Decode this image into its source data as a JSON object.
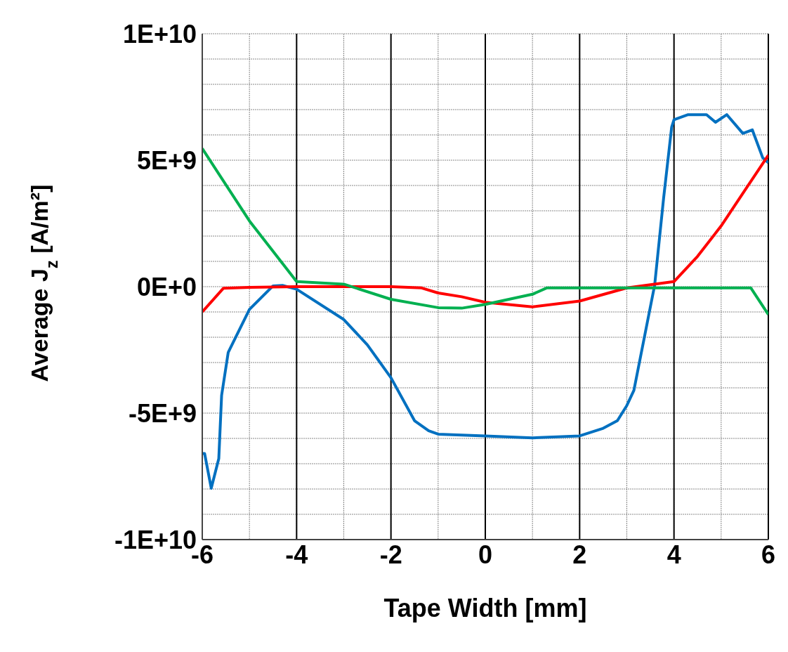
{
  "chart_data": {
    "type": "line",
    "xlabel": "Tape Width [mm]",
    "ylabel": "Average J$_{z}$ [A/m²]",
    "xlim": [
      -6,
      6
    ],
    "ylim": [
      -10000000000,
      10000000000
    ],
    "xticks": [
      -6,
      {
        "value": -5,
        "label": null
      },
      -4,
      {
        "value": -3,
        "label": null
      },
      -2,
      {
        "value": -1,
        "label": null
      },
      0,
      {
        "value": 1,
        "label": null
      },
      2,
      {
        "value": 3,
        "label": null
      },
      4,
      {
        "value": 5,
        "label": null
      },
      6
    ],
    "yticks": [
      {
        "value": -10000000000,
        "label": "-1E+10"
      },
      {
        "value": -9000000000,
        "label": null
      },
      {
        "value": -8000000000,
        "label": null
      },
      {
        "value": -7000000000,
        "label": null
      },
      {
        "value": -6000000000,
        "label": null
      },
      {
        "value": -5000000000,
        "label": "-5E+9"
      },
      {
        "value": -4000000000,
        "label": null
      },
      {
        "value": -3000000000,
        "label": null
      },
      {
        "value": -2000000000,
        "label": null
      },
      {
        "value": -1000000000,
        "label": null
      },
      {
        "value": 0,
        "label": "0E+0"
      },
      {
        "value": 1000000000,
        "label": null
      },
      {
        "value": 2000000000,
        "label": null
      },
      {
        "value": 3000000000,
        "label": null
      },
      {
        "value": 4000000000,
        "label": null
      },
      {
        "value": 5000000000,
        "label": "5E+9"
      },
      {
        "value": 6000000000,
        "label": null
      },
      {
        "value": 7000000000,
        "label": null
      },
      {
        "value": 8000000000,
        "label": null
      },
      {
        "value": 9000000000,
        "label": null
      },
      {
        "value": 10000000000,
        "label": "1E+10"
      }
    ],
    "grid": true,
    "legend": false,
    "marker": "none",
    "line_style": "solid",
    "series": [
      {
        "color": "#0070c0",
        "x": [
          -6,
          -5.95,
          -5.81,
          -5.65,
          -5.59,
          -5.45,
          -5,
          -4.5,
          -4.3,
          -4,
          -3,
          -2.5,
          -2,
          -1.5,
          -1.2,
          -1,
          0,
          1,
          2,
          2.5,
          2.8,
          3,
          3.15,
          3.59,
          3.78,
          3.95,
          4,
          4.3,
          4.69,
          4.88,
          5.12,
          5.46,
          5.66,
          5.88,
          6
        ],
        "values": [
          -6600000000.0,
          -6600000000.0,
          -7970000000.0,
          -6800000000.0,
          -4300000000.0,
          -2600000000.0,
          -900000000.0,
          30000000.0,
          50000000.0,
          -100000000.0,
          -1300000000.0,
          -2300000000.0,
          -3600000000.0,
          -5300000000.0,
          -5700000000.0,
          -5830000000.0,
          -5900000000.0,
          -5980000000.0,
          -5900000000.0,
          -5600000000.0,
          -5300000000.0,
          -4700000000.0,
          -4100000000.0,
          60000000.0,
          3500000000.0,
          6300000000.0,
          6600000000.0,
          6800000000.0,
          6800000000.0,
          6500000000.0,
          6800000000.0,
          6060000000.0,
          6200000000.0,
          5100000000.0,
          4900000000.0
        ]
      },
      {
        "color": "#ff0000",
        "x": [
          -6,
          -5.55,
          -5,
          -4,
          -3,
          -2,
          -1.35,
          -1,
          -0.5,
          0,
          1,
          2,
          3,
          4,
          4.5,
          5,
          5.5,
          6
        ],
        "values": [
          -1000000000.0,
          -60000000.0,
          -30000000.0,
          0,
          0,
          0,
          -50000000.0,
          -250000000.0,
          -400000000.0,
          -620000000.0,
          -800000000.0,
          -570000000.0,
          -50000000.0,
          200000000.0,
          1200000000.0,
          2400000000.0,
          3800000000.0,
          5200000000.0
        ]
      },
      {
        "color": "#00b050",
        "x": [
          -6,
          -5,
          -4,
          -3,
          -2,
          -1,
          -0.5,
          0,
          1,
          1.3,
          3,
          5.63,
          6
        ],
        "values": [
          5460000000.0,
          2600000000.0,
          200000000.0,
          100000000.0,
          -500000000.0,
          -830000000.0,
          -850000000.0,
          -700000000.0,
          -300000000.0,
          -50000000.0,
          -50000000.0,
          -50000000.0,
          -1100000000.0
        ]
      }
    ]
  }
}
